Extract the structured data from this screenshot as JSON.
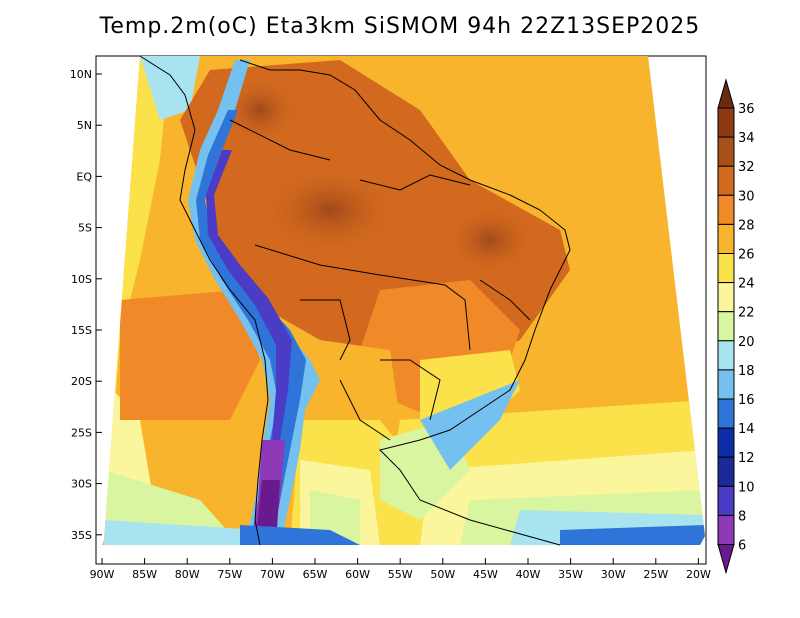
{
  "title": "Temp.2m(oC) Eta3km SiSMOM 94h 22Z13SEP2025",
  "latitude_labels": [
    "10N",
    "5N",
    "EQ",
    "5S",
    "10S",
    "15S",
    "20S",
    "25S",
    "30S",
    "35S"
  ],
  "longitude_labels": [
    "90W",
    "85W",
    "80W",
    "75W",
    "70W",
    "65W",
    "60W",
    "55W",
    "50W",
    "45W",
    "40W",
    "35W",
    "30W",
    "25W",
    "20W"
  ],
  "colorbar": {
    "labels": [
      "36",
      "34",
      "32",
      "30",
      "28",
      "26",
      "24",
      "22",
      "20",
      "18",
      "16",
      "14",
      "12",
      "10",
      "8",
      "6"
    ],
    "colors": [
      "#6b2b0f",
      "#8b3a12",
      "#a8501a",
      "#d2691e",
      "#f08a28",
      "#f7b42c",
      "#fbe14a",
      "#fbf59c",
      "#d9f5a0",
      "#a8e4f0",
      "#74c0ee",
      "#2f74d8",
      "#0d2ea6",
      "#1a2a9a",
      "#4b3cc8",
      "#8e3ab8",
      "#6a1a8f"
    ]
  }
}
